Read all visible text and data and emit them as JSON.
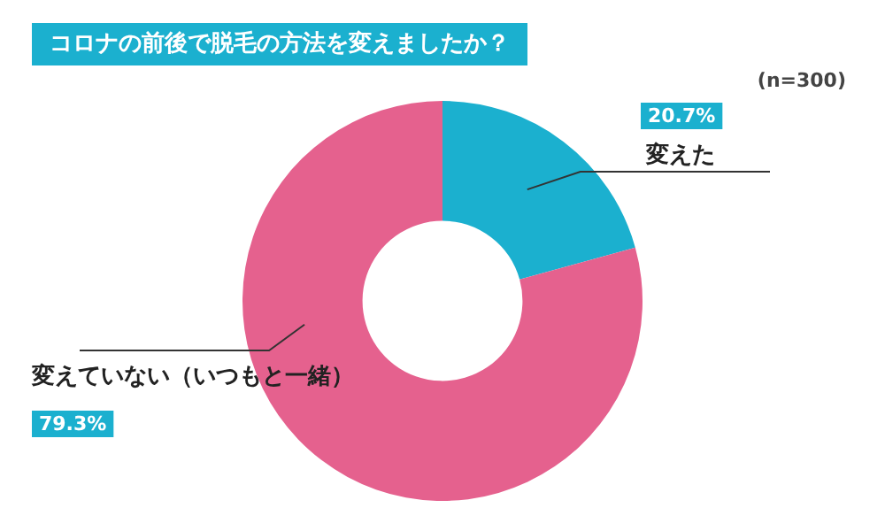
{
  "chart_data": {
    "type": "donut",
    "title": "コロナの前後で脱毛の方法を変えましたか？",
    "categories": [
      "変えた",
      "変えていない（いつもと一緒）"
    ],
    "values": [
      20.7,
      79.3
    ],
    "colors": [
      "#1bb0cf",
      "#e5618e"
    ],
    "value_labels": [
      "20.7%",
      "79.3%"
    ],
    "annotations": [
      "(n=300)"
    ]
  }
}
